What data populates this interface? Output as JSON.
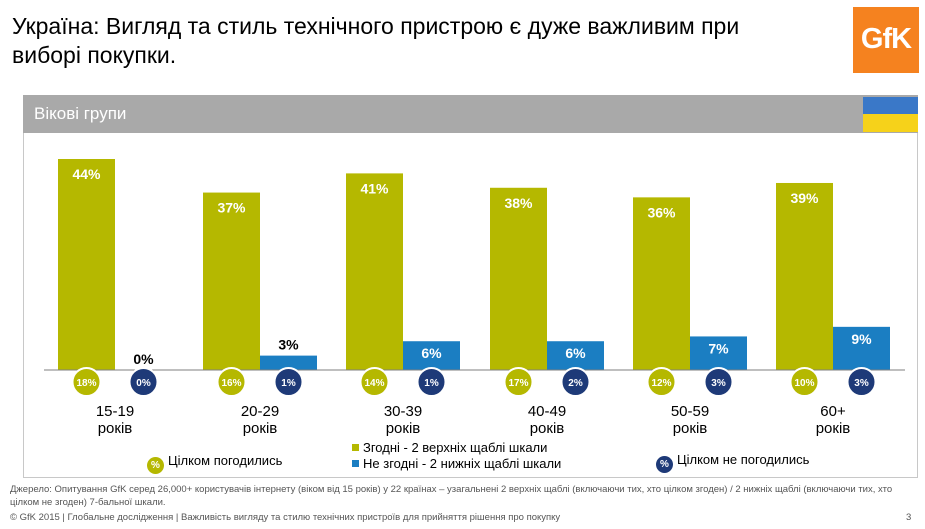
{
  "title": "Україна: Вигляд та стиль технічного пристрою є дуже важливим при виборі покупки.",
  "logo_text": "GfK",
  "section_label": "Вікові групи",
  "colors": {
    "agree": "#b5b800",
    "disagree": "#1b7ec2",
    "full_disagree": "#1e3a78",
    "header_bar": "#a9a9a9",
    "flag_blue": "#3a78c8",
    "flag_yellow": "#f6d21a"
  },
  "chart_data": {
    "type": "bar",
    "categories": [
      "15-19\nроків",
      "20-29\nроків",
      "30-39\nроків",
      "40-49\nроків",
      "50-59\nроків",
      "60+\nроків"
    ],
    "series": [
      {
        "name": "Згодні - 2 верхніх щаблі шкали",
        "values": [
          44,
          37,
          41,
          38,
          36,
          39
        ],
        "labels": [
          "44%",
          "37%",
          "41%",
          "38%",
          "36%",
          "39%"
        ]
      },
      {
        "name": "Не згодні - 2 нижніх щаблі шкали",
        "values": [
          0,
          3,
          6,
          6,
          7,
          9
        ],
        "labels": [
          "0%",
          "3%",
          "6%",
          "6%",
          "7%",
          "9%"
        ]
      },
      {
        "name": "Цілком погодились",
        "values": [
          18,
          16,
          14,
          17,
          12,
          10
        ],
        "labels": [
          "18%",
          "16%",
          "14%",
          "17%",
          "12%",
          "10%"
        ]
      },
      {
        "name": "Цілком не погодились",
        "values": [
          0,
          1,
          1,
          2,
          3,
          3
        ],
        "labels": [
          "0%",
          "1%",
          "1%",
          "2%",
          "3%",
          "3%"
        ]
      }
    ],
    "ylim": [
      0,
      44
    ]
  },
  "legend": {
    "full_agree": "Цілком погодились",
    "agree": "Згодні - 2 верхніх щаблі шкали",
    "disagree": "Не згодні - 2 нижніх щаблі шкали",
    "full_disagree": "Цілком не погодились",
    "percent_symbol": "%"
  },
  "source": "Джерело: Опитування GfK серед 26,000+ користувачів інтернету (віком від 15 років) у 22 країнах – узагальнені  2 верхніх щаблі (включаючи тих, хто цілком згоден) / 2 нижніх щаблі (включаючи тих, хто цілком не згоден) 7-бальної шкали.",
  "footer": "© GfK 2015 | Глобальне дослідження | Важливість вигляду та стилю технічних пристроїв для прийняття рішення про покупку",
  "page_number": "3"
}
